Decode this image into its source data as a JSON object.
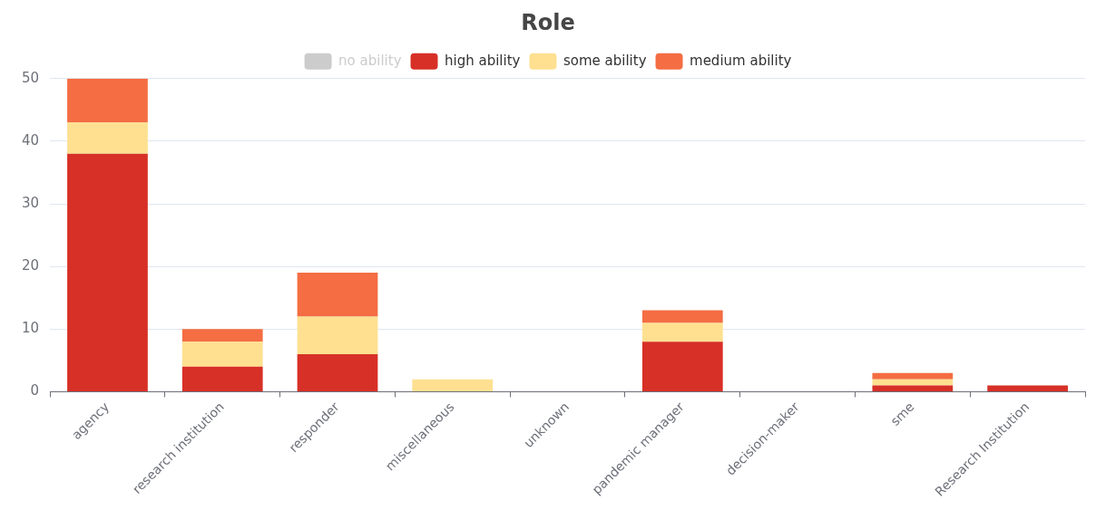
{
  "chart_data": {
    "type": "bar",
    "title": "Role",
    "stacked": true,
    "grid": "y",
    "legend": "top",
    "categories": [
      "agency",
      "research institution",
      "responder",
      "miscellaneous",
      "unknown",
      "pandemic manager",
      "decision-maker",
      "sme",
      "Research Institution"
    ],
    "ylim": [
      0,
      50
    ],
    "yticks": [
      0,
      10,
      20,
      30,
      40,
      50
    ],
    "series": [
      {
        "name": "no ability",
        "color": "#cccccc",
        "values": [
          null,
          null,
          null,
          null,
          null,
          null,
          null,
          null,
          null
        ]
      },
      {
        "name": "high ability",
        "color": "#d73027",
        "values": [
          38,
          4,
          6,
          0,
          0,
          8,
          0,
          1,
          1
        ]
      },
      {
        "name": "some ability",
        "color": "#fee090",
        "values": [
          5,
          4,
          6,
          2,
          0,
          3,
          0,
          1,
          0
        ]
      },
      {
        "name": "medium ability",
        "color": "#f46d43",
        "values": [
          7,
          2,
          7,
          0,
          0,
          2,
          0,
          1,
          0
        ]
      }
    ]
  }
}
